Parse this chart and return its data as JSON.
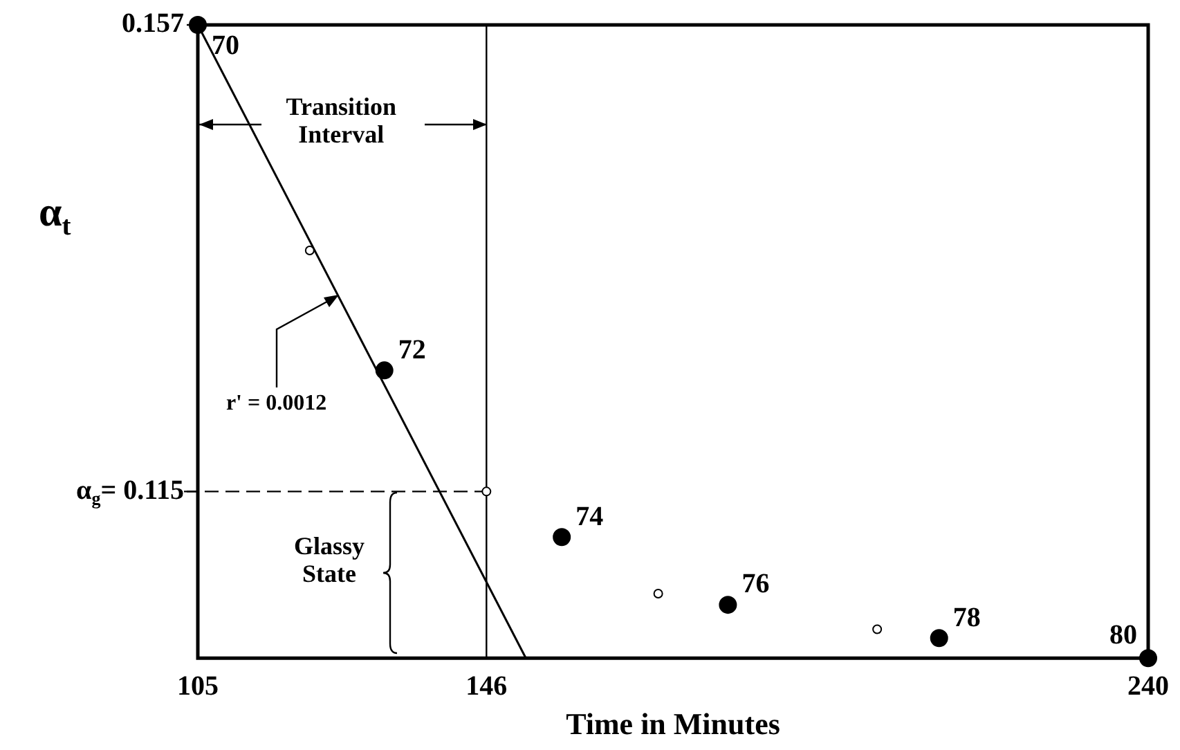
{
  "chart_data": {
    "type": "scatter",
    "xlabel": "Time in Minutes",
    "ylabel": "α$_{t}$",
    "xlim": [
      105,
      240
    ],
    "xticks": [
      105,
      146,
      240
    ],
    "ylim": [
      0.1,
      0.157
    ],
    "yticks": [
      0.157,
      {
        "value": 0.115,
        "label": "α$_{g}$= 0.115"
      }
    ],
    "grid": false,
    "legend": false,
    "series": [
      {
        "color": "#000000",
        "marker": "circle",
        "x": [
          105,
          131.5,
          156.7,
          180.3,
          210.3,
          240
        ],
        "values": [
          0.157,
          0.1259,
          0.1109,
          0.1048,
          0.1018,
          0.1
        ]
      },
      {
        "color": "#000000",
        "marker": "circle",
        "x": [
          120.9,
          146,
          170.4,
          201.5
        ],
        "values": [
          0.1367,
          0.115,
          0.1058,
          0.1026
        ]
      },
      {
        "type": "line",
        "color": "#000000",
        "marker": "none",
        "line_style": "solid",
        "x": [
          105,
          151.6
        ],
        "values": [
          0.157,
          0.1
        ]
      }
    ],
    "ref_lines": [
      {
        "axis": "x",
        "value": 146,
        "color": "#000000",
        "line_style": "solid"
      },
      {
        "axis": "y",
        "value": 0.115,
        "color": "#000000",
        "line_style": "dashed"
      }
    ],
    "annotations": [
      {
        "text": "70",
        "x": 105,
        "y": 0.157
      },
      {
        "text": "72",
        "x": 131.5,
        "y": 0.1259
      },
      {
        "text": "74",
        "x": 156.7,
        "y": 0.1109
      },
      {
        "text": "76",
        "x": 180.3,
        "y": 0.1048
      },
      {
        "text": "78",
        "x": 210.3,
        "y": 0.1018
      },
      {
        "text": "80",
        "x": 240,
        "y": 0.1
      },
      {
        "text": "Transition Interval",
        "x": 146,
        "y": 0.148
      },
      {
        "text": "r' = 0.0012",
        "x": 125,
        "y": 0.1325
      },
      "Glassy State"
    ]
  }
}
